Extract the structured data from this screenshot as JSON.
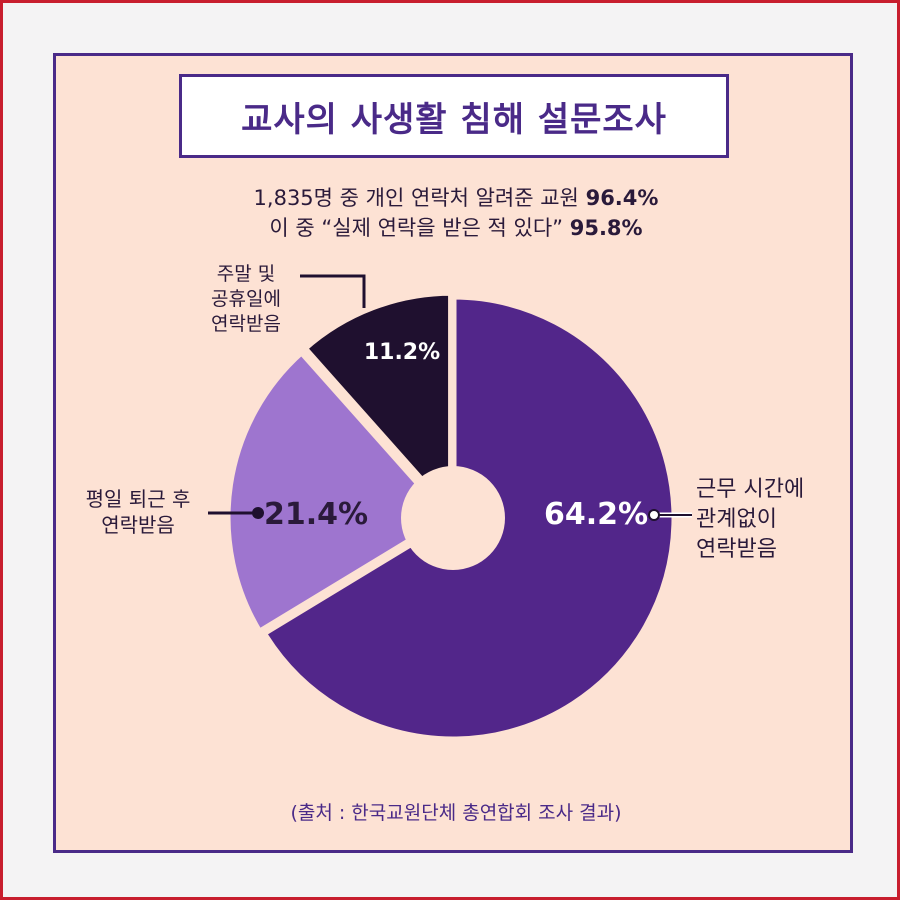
{
  "title": "교사의 사생활 침해 설문조사",
  "subtitle_line1": {
    "text": "1,835명 중 개인 연락처 알려준 교원",
    "value": "96.4%"
  },
  "subtitle_line2": {
    "text": "이 중 “실제 연락을 받은 적 있다”",
    "value": "95.8%"
  },
  "source": "(출처 : 한국교원단체 총연합회 조사 결과)",
  "chart_data": {
    "type": "pie",
    "title": "교사의 사생활 침해 설문조사",
    "unit": "%",
    "slices": [
      {
        "label": [
          "근무 시간에",
          "관계없이",
          "연락받음"
        ],
        "value": 64.2,
        "display": "64.2%",
        "color": "#52268a",
        "text_color": "#ffffff"
      },
      {
        "label": [
          "평일 퇴근 후",
          "연락받음"
        ],
        "value": 21.4,
        "display": "21.4%",
        "color": "#9e75cf",
        "text_color": "#2a1a3a"
      },
      {
        "label": [
          "주말 및",
          "공휴일에",
          "연락받음"
        ],
        "value": 11.2,
        "display": "11.2%",
        "color": "#1f102f",
        "text_color": "#ffffff"
      }
    ],
    "legend": "none"
  },
  "colors": {
    "outer_border": "#c81e2e",
    "panel_border": "#4a2a88",
    "panel_background": "#fde2d4",
    "title_text": "#4a2a88"
  }
}
